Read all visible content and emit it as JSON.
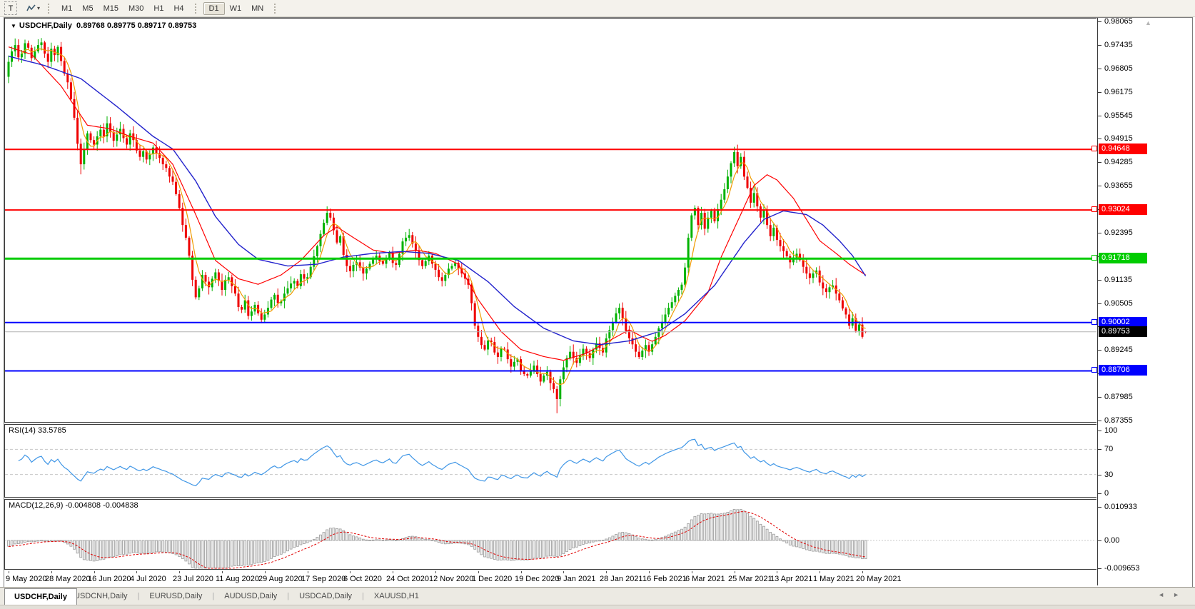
{
  "toolbar": {
    "text_tool": "T",
    "timeframes": [
      "M1",
      "M5",
      "M15",
      "M30",
      "H1",
      "H4",
      "D1",
      "W1",
      "MN"
    ],
    "active_timeframe": "D1"
  },
  "chart_header": {
    "dropdown_icon": "down-caret",
    "title": "USDCHF,Daily",
    "open": "0.89768",
    "high": "0.89775",
    "low": "0.89717",
    "close": "0.89753"
  },
  "rsi_panel": {
    "label": "RSI(14) 33.5785"
  },
  "macd_panel": {
    "label": "MACD(12,26,9) -0.004808 -0.004838"
  },
  "tabs": {
    "active": "USDCHF,Daily",
    "items": [
      "USDCHF,Daily",
      "USDCNH,Daily",
      "EURUSD,Daily",
      "AUDUSD,Daily",
      "USDCAD,Daily",
      "XAUUSD,H1"
    ]
  },
  "chart_data": {
    "type": "candlestick",
    "symbol": "USDCHF",
    "timeframe": "Daily",
    "bars": 262,
    "price_range": [
      0.87355,
      0.98065
    ],
    "y_tick_labels": [
      "0.98065",
      "0.97435",
      "0.96805",
      "0.96175",
      "0.95545",
      "0.94915",
      "0.94285",
      "0.93655",
      "0.93025",
      "0.92395",
      "0.91765",
      "0.91135",
      "0.90505",
      "0.89875",
      "0.89245",
      "0.88615",
      "0.87985",
      "0.87355"
    ],
    "x_tick_labels": [
      "9 May 2020",
      "28 May 2020",
      "16 Jun 2020",
      "4 Jul 2020",
      "23 Jul 2020",
      "11 Aug 2020",
      "29 Aug 2020",
      "17 Sep 2020",
      "6 Oct 2020",
      "24 Oct 2020",
      "12 Nov 2020",
      "1 Dec 2020",
      "19 Dec 2020",
      "9 Jan 2021",
      "28 Jan 2021",
      "16 Feb 2021",
      "6 Mar 2021",
      "25 Mar 2021",
      "13 Apr 2021",
      "1 May 2021",
      "20 May 2021"
    ],
    "bars_per_x_tick": 13,
    "candle_up_color": "#00b200",
    "candle_down_color": "#ee0000",
    "closes": [
      0.97,
      0.9728,
      0.9745,
      0.9712,
      0.9722,
      0.975,
      0.9738,
      0.971,
      0.9728,
      0.9745,
      0.9752,
      0.9722,
      0.97,
      0.9735,
      0.9718,
      0.974,
      0.9702,
      0.9668,
      0.9645,
      0.96,
      0.955,
      0.948,
      0.9425,
      0.9465,
      0.9508,
      0.949,
      0.9478,
      0.95,
      0.9518,
      0.95,
      0.9535,
      0.9512,
      0.9488,
      0.9505,
      0.952,
      0.9495,
      0.9478,
      0.9508,
      0.949,
      0.9462,
      0.9445,
      0.946,
      0.9438,
      0.9452,
      0.947,
      0.9455,
      0.9442,
      0.9425,
      0.9415,
      0.9392,
      0.9378,
      0.9345,
      0.9308,
      0.9262,
      0.9228,
      0.918,
      0.9115,
      0.9068,
      0.9092,
      0.9128,
      0.911,
      0.9095,
      0.9118,
      0.9135,
      0.9112,
      0.9088,
      0.9115,
      0.9122,
      0.9098,
      0.9078,
      0.9042,
      0.9035,
      0.906,
      0.9018,
      0.903,
      0.9048,
      0.9025,
      0.9008,
      0.9022,
      0.904,
      0.9062,
      0.9075,
      0.9052,
      0.9058,
      0.9078,
      0.9092,
      0.9105,
      0.9112,
      0.9098,
      0.913,
      0.9118,
      0.9122,
      0.915,
      0.9178,
      0.9205,
      0.9238,
      0.9268,
      0.9295,
      0.9282,
      0.9248,
      0.9215,
      0.9232,
      0.9182,
      0.9152,
      0.9138,
      0.9155,
      0.9162,
      0.9148,
      0.9132,
      0.9145,
      0.9158,
      0.9172,
      0.918,
      0.9165,
      0.9158,
      0.9172,
      0.9188,
      0.916,
      0.9155,
      0.9185,
      0.9218,
      0.9228,
      0.9235,
      0.9212,
      0.9192,
      0.9168,
      0.9152,
      0.9165,
      0.918,
      0.9158,
      0.9142,
      0.9122,
      0.9112,
      0.9128,
      0.9145,
      0.9152,
      0.916,
      0.9145,
      0.9132,
      0.9118,
      0.9102,
      0.9052,
      0.8992,
      0.8962,
      0.894,
      0.8928,
      0.8952,
      0.8948,
      0.892,
      0.8908,
      0.893,
      0.8928,
      0.8902,
      0.8882,
      0.8895,
      0.8902,
      0.8872,
      0.8862,
      0.8858,
      0.8872,
      0.8885,
      0.8862,
      0.8842,
      0.8858,
      0.8868,
      0.8838,
      0.8822,
      0.8795,
      0.8848,
      0.888,
      0.8905,
      0.8922,
      0.8905,
      0.8892,
      0.8912,
      0.893,
      0.8918,
      0.8905,
      0.8928,
      0.8945,
      0.8932,
      0.892,
      0.8958,
      0.898,
      0.9002,
      0.9025,
      0.904,
      0.9012,
      0.8978,
      0.8958,
      0.8942,
      0.8922,
      0.8908,
      0.8925,
      0.894,
      0.8922,
      0.8942,
      0.8962,
      0.8985,
      0.9002,
      0.9022,
      0.904,
      0.9055,
      0.9072,
      0.9088,
      0.9102,
      0.9148,
      0.9228,
      0.9288,
      0.9308,
      0.9262,
      0.9295,
      0.9252,
      0.9282,
      0.93,
      0.9272,
      0.9305,
      0.933,
      0.9358,
      0.9392,
      0.9428,
      0.9458,
      0.942,
      0.9445,
      0.9392,
      0.9362,
      0.9322,
      0.9348,
      0.9312,
      0.9282,
      0.9302,
      0.9262,
      0.9232,
      0.9255,
      0.9222,
      0.9205,
      0.9192,
      0.9178,
      0.9162,
      0.9175,
      0.9185,
      0.9168,
      0.915,
      0.9132,
      0.912,
      0.9132,
      0.914,
      0.9108,
      0.9092,
      0.9082,
      0.9095,
      0.91,
      0.9078,
      0.906,
      0.9038,
      0.9022,
      0.8992,
      0.9012,
      0.8978,
      0.8995,
      0.8962,
      0.89753
    ],
    "first_open": 0.966,
    "wick_overrides": {
      "22": {
        "l": 0.9398
      },
      "97": {
        "h": 0.9312
      },
      "167": {
        "l": 0.8757
      },
      "209": {
        "h": 0.9315
      },
      "221": {
        "h": 0.9472
      },
      "261": {
        "o": 0.89768,
        "h": 0.89775,
        "l": 0.89717,
        "c": 0.89753
      }
    },
    "moving_averages": {
      "fast": {
        "color": "#ef9b00",
        "window": 5
      },
      "mid": {
        "color": "#ff0000",
        "path": [
          [
            0,
            0.974
          ],
          [
            7,
            0.972
          ],
          [
            16,
            0.9635
          ],
          [
            24,
            0.953
          ],
          [
            31,
            0.952
          ],
          [
            37,
            0.95
          ],
          [
            44,
            0.9482
          ],
          [
            50,
            0.9425
          ],
          [
            57,
            0.929
          ],
          [
            63,
            0.9167
          ],
          [
            70,
            0.9118
          ],
          [
            76,
            0.9103
          ],
          [
            83,
            0.9128
          ],
          [
            89,
            0.9167
          ],
          [
            96,
            0.9234
          ],
          [
            100,
            0.9257
          ],
          [
            104,
            0.9234
          ],
          [
            111,
            0.9195
          ],
          [
            117,
            0.9186
          ],
          [
            124,
            0.9195
          ],
          [
            130,
            0.9186
          ],
          [
            137,
            0.9157
          ],
          [
            143,
            0.9062
          ],
          [
            150,
            0.8976
          ],
          [
            156,
            0.8928
          ],
          [
            163,
            0.8909
          ],
          [
            169,
            0.8899
          ],
          [
            176,
            0.8918
          ],
          [
            182,
            0.8947
          ],
          [
            189,
            0.8981
          ],
          [
            193,
            0.8962
          ],
          [
            196,
            0.895
          ],
          [
            200,
            0.8966
          ],
          [
            206,
            0.9005
          ],
          [
            213,
            0.9081
          ],
          [
            217,
            0.9176
          ],
          [
            222,
            0.9272
          ],
          [
            227,
            0.9368
          ],
          [
            231,
            0.9397
          ],
          [
            234,
            0.9383
          ],
          [
            239,
            0.9334
          ],
          [
            243,
            0.9277
          ],
          [
            247,
            0.922
          ],
          [
            252,
            0.9186
          ],
          [
            256,
            0.9157
          ],
          [
            261,
            0.9128
          ]
        ]
      },
      "slow": {
        "color": "#2222cc",
        "path": [
          [
            0,
            0.9715
          ],
          [
            11,
            0.969
          ],
          [
            22,
            0.9655
          ],
          [
            33,
            0.958
          ],
          [
            44,
            0.95
          ],
          [
            50,
            0.9466
          ],
          [
            57,
            0.938
          ],
          [
            63,
            0.9285
          ],
          [
            70,
            0.921
          ],
          [
            76,
            0.917
          ],
          [
            85,
            0.9152
          ],
          [
            94,
            0.9157
          ],
          [
            102,
            0.9176
          ],
          [
            111,
            0.9186
          ],
          [
            120,
            0.9191
          ],
          [
            128,
            0.9186
          ],
          [
            137,
            0.9167
          ],
          [
            146,
            0.911
          ],
          [
            154,
            0.9043
          ],
          [
            163,
            0.8985
          ],
          [
            172,
            0.8951
          ],
          [
            180,
            0.8941
          ],
          [
            189,
            0.8951
          ],
          [
            198,
            0.8976
          ],
          [
            206,
            0.9024
          ],
          [
            215,
            0.91
          ],
          [
            224,
            0.9215
          ],
          [
            230,
            0.9277
          ],
          [
            236,
            0.93
          ],
          [
            243,
            0.929
          ],
          [
            248,
            0.9262
          ],
          [
            253,
            0.922
          ],
          [
            257,
            0.918
          ],
          [
            261,
            0.9125
          ]
        ]
      }
    },
    "hlines": [
      {
        "label": "0.94648",
        "value": 0.94648,
        "color": "#ff0000",
        "width": 2
      },
      {
        "label": "0.93024",
        "value": 0.93024,
        "color": "#ff0000",
        "width": 2
      },
      {
        "label": "0.91718",
        "value": 0.91718,
        "color": "#00cc00",
        "width": 3
      },
      {
        "label": "0.90002",
        "value": 0.90002,
        "color": "#0000ff",
        "width": 2
      },
      {
        "label": "0.88706",
        "value": 0.88706,
        "color": "#0000ff",
        "width": 2
      }
    ],
    "current_price": {
      "label": "0.89753",
      "value": 0.89753,
      "line_color": "#b4b4b4",
      "box_color": "#000000"
    },
    "indicators": {
      "rsi": {
        "period": 14,
        "current": 33.5785,
        "line_color": "#3f96e6",
        "axis_ticks": [
          {
            "v": 100,
            "label": "100"
          },
          {
            "v": 70,
            "label": "70"
          },
          {
            "v": 30,
            "label": "30"
          },
          {
            "v": 0,
            "label": "0"
          }
        ],
        "dashed_levels": [
          70,
          30
        ]
      },
      "macd": {
        "fast": 12,
        "slow": 26,
        "signal": 9,
        "current_macd": -0.004808,
        "current_signal": -0.004838,
        "axis_ticks": [
          {
            "v": 0.010933,
            "label": "0.010933"
          },
          {
            "v": 0,
            "label": "0.00"
          },
          {
            "v": -0.009653,
            "label": "-0.009653"
          }
        ],
        "histogram_stroke": "#9a9a9a",
        "histogram_fill": "#efefef",
        "signal_color": "#e00000"
      }
    }
  }
}
